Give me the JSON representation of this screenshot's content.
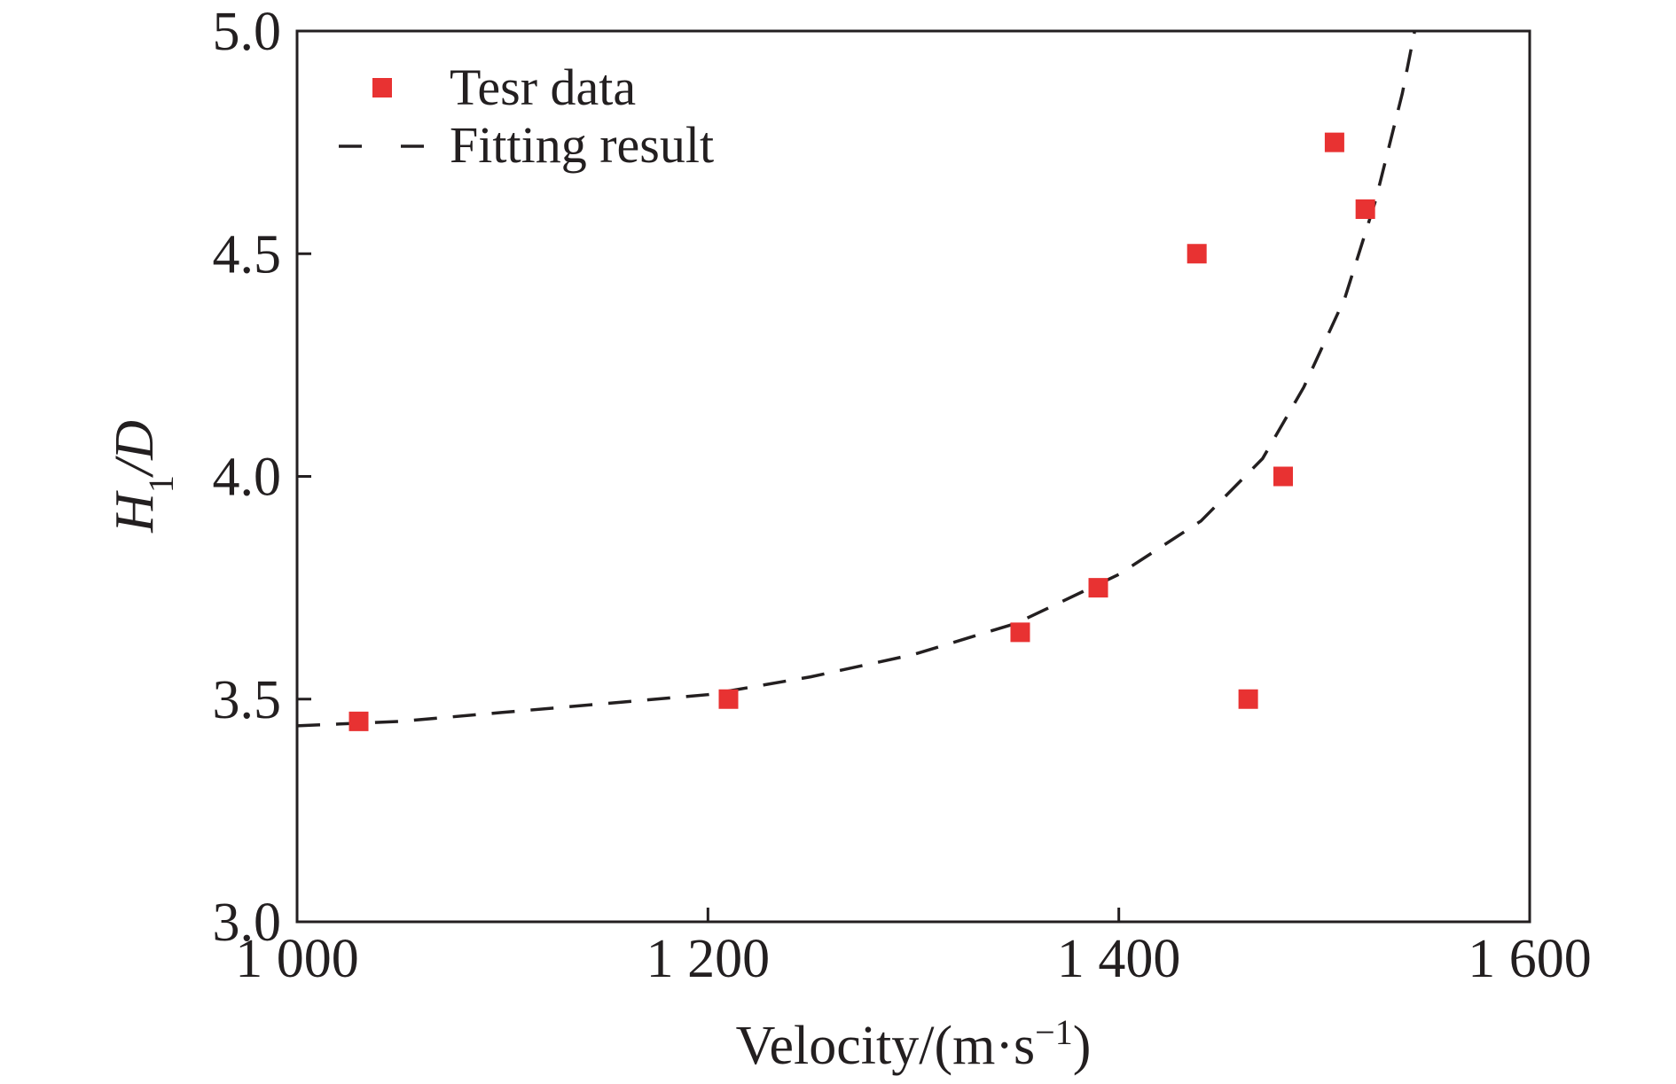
{
  "chart_data": {
    "type": "scatter",
    "title": "",
    "xlabel": {
      "main": "Velocity/(m·s",
      "superscript": "−1",
      "close": ")"
    },
    "ylabel": {
      "main": "H",
      "subscript": "1",
      "rest": "/D"
    },
    "xlim": [
      1000,
      1600
    ],
    "ylim": [
      3.0,
      5.0
    ],
    "x_ticks": [
      1000,
      1200,
      1400,
      1600
    ],
    "x_tick_labels": [
      "1 000",
      "1 200",
      "1 400",
      "1 600"
    ],
    "y_ticks": [
      3.0,
      3.5,
      4.0,
      4.5,
      5.0
    ],
    "y_tick_labels": [
      "3.0",
      "3.5",
      "4.0",
      "4.5",
      "5.0"
    ],
    "grid": false,
    "legend_position": "top-left",
    "series": [
      {
        "name": "Tesr data",
        "kind": "scatter",
        "marker": "square",
        "color": "#e83232",
        "points": [
          {
            "x": 1030,
            "y": 3.45
          },
          {
            "x": 1210,
            "y": 3.5
          },
          {
            "x": 1352,
            "y": 3.65
          },
          {
            "x": 1390,
            "y": 3.75
          },
          {
            "x": 1438,
            "y": 4.5
          },
          {
            "x": 1463,
            "y": 3.5
          },
          {
            "x": 1480,
            "y": 4.0
          },
          {
            "x": 1505,
            "y": 4.75
          },
          {
            "x": 1520,
            "y": 4.6
          }
        ]
      },
      {
        "name": "Fitting result",
        "kind": "line",
        "style": "dashed",
        "color": "#231f20",
        "points": [
          {
            "x": 1000,
            "y": 3.44
          },
          {
            "x": 1050,
            "y": 3.45
          },
          {
            "x": 1100,
            "y": 3.47
          },
          {
            "x": 1150,
            "y": 3.49
          },
          {
            "x": 1200,
            "y": 3.51
          },
          {
            "x": 1250,
            "y": 3.55
          },
          {
            "x": 1300,
            "y": 3.6
          },
          {
            "x": 1350,
            "y": 3.67
          },
          {
            "x": 1400,
            "y": 3.78
          },
          {
            "x": 1440,
            "y": 3.9
          },
          {
            "x": 1470,
            "y": 4.04
          },
          {
            "x": 1490,
            "y": 4.2
          },
          {
            "x": 1510,
            "y": 4.4
          },
          {
            "x": 1525,
            "y": 4.62
          },
          {
            "x": 1538,
            "y": 4.86
          },
          {
            "x": 1544,
            "y": 5.0
          }
        ]
      }
    ]
  }
}
